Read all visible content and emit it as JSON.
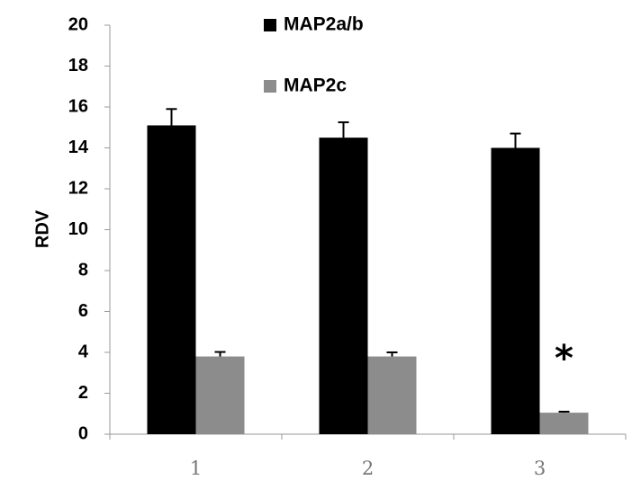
{
  "chart_data": {
    "type": "bar",
    "title": "",
    "xlabel": "",
    "ylabel": "RDV",
    "ylim": [
      0,
      20
    ],
    "yticks": [
      0,
      2,
      4,
      6,
      8,
      10,
      12,
      14,
      16,
      18,
      20
    ],
    "categories": [
      "1",
      "2",
      "3"
    ],
    "grid": false,
    "legend_position": "top-center",
    "series": [
      {
        "name": "MAP2a/b",
        "color": "#000000",
        "values": [
          15.1,
          14.5,
          14.0
        ],
        "errors": [
          0.8,
          0.75,
          0.7
        ]
      },
      {
        "name": "MAP2c",
        "color": "#8c8c8c",
        "values": [
          3.8,
          3.8,
          1.05
        ],
        "errors": [
          0.22,
          0.2,
          0.05
        ]
      }
    ],
    "annotations": [
      {
        "text": "*",
        "category": "3",
        "series": "MAP2c"
      }
    ]
  }
}
